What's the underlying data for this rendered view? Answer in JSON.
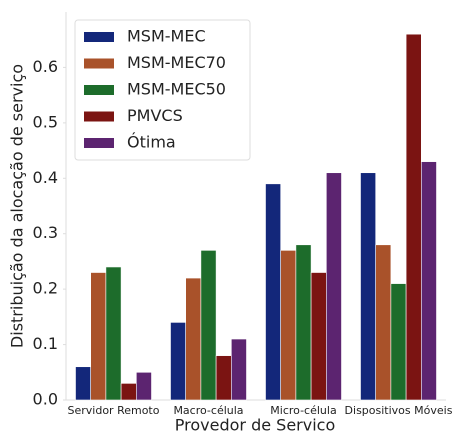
{
  "chart_data": {
    "type": "bar",
    "xlabel": "Provedor de Servico",
    "ylabel": "Distribuição da alocação de serviço",
    "categories": [
      "Servidor Remoto",
      "Macro-célula",
      "Micro-célula",
      "Dispositivos Móveis"
    ],
    "series": [
      {
        "name": "MSM-MEC",
        "color": "#13277a",
        "values": [
          0.06,
          0.14,
          0.39,
          0.41
        ]
      },
      {
        "name": "MSM-MEC70",
        "color": "#a9522a",
        "values": [
          0.23,
          0.22,
          0.27,
          0.28
        ]
      },
      {
        "name": "MSM-MEC50",
        "color": "#1d6c2b",
        "values": [
          0.24,
          0.27,
          0.28,
          0.21
        ]
      },
      {
        "name": "PMVCS",
        "color": "#7b1412",
        "values": [
          0.03,
          0.08,
          0.23,
          0.66
        ]
      },
      {
        "name": "Ótima",
        "color": "#5c2470",
        "values": [
          0.05,
          0.11,
          0.41,
          0.43
        ]
      }
    ],
    "ylim": [
      0,
      0.7
    ],
    "yticks": [
      {
        "value": 0,
        "label": "0.0"
      },
      0.1,
      0.2,
      0.3,
      0.4,
      0.5,
      0.6
    ],
    "grid": false,
    "legend": "upper-left"
  }
}
